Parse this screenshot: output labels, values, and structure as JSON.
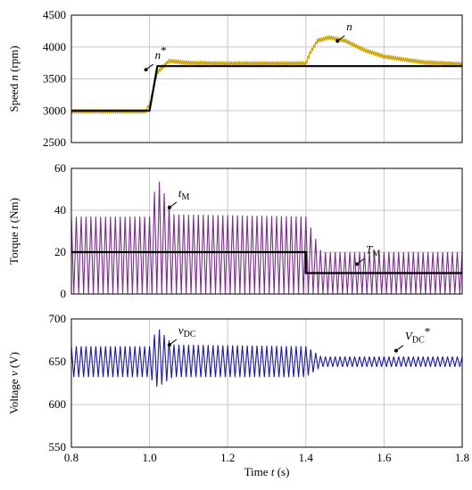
{
  "chart_data": [
    {
      "type": "line",
      "ylabel_main": "Speed ",
      "ylabel_var": "n",
      "ylabel_unit": " (rpm)",
      "xlim": [
        0.8,
        1.8
      ],
      "ylim": [
        2500,
        4500
      ],
      "yticks": [
        "2500",
        "3000",
        "3500",
        "4000",
        "4500"
      ],
      "grid": true,
      "colors": {
        "n": "#c8a000",
        "ref": "#000000"
      },
      "annotations": [
        {
          "text": "n",
          "sub": "",
          "sup": "",
          "x": 1.49,
          "y": 4150
        },
        {
          "text": "n",
          "sub": "",
          "sup": "*",
          "x": 1.0,
          "y": 3700
        }
      ],
      "series": [
        {
          "name": "n*",
          "x": [
            0.8,
            1.0,
            1.02,
            1.8
          ],
          "y": [
            3000,
            3000,
            3700,
            3700
          ]
        },
        {
          "name": "n",
          "x": [
            0.8,
            0.99,
            1.0,
            1.02,
            1.05,
            1.1,
            1.2,
            1.3,
            1.4,
            1.41,
            1.43,
            1.46,
            1.5,
            1.55,
            1.6,
            1.7,
            1.8
          ],
          "y": [
            2990,
            2990,
            3100,
            3600,
            3780,
            3750,
            3740,
            3740,
            3740,
            3900,
            4100,
            4150,
            4100,
            3950,
            3850,
            3760,
            3730
          ]
        }
      ]
    },
    {
      "type": "line",
      "ylabel_main": "Torque ",
      "ylabel_var": "t",
      "ylabel_unit": " (Nm)",
      "xlim": [
        0.8,
        1.8
      ],
      "ylim": [
        0,
        60
      ],
      "yticks": [
        "0",
        "20",
        "40",
        "60"
      ],
      "grid": true,
      "colors": {
        "t": "#7b2d8b",
        "ref": "#000000"
      },
      "annotations": [
        {
          "text": "t",
          "sub": "M",
          "sup": "",
          "x": 1.06,
          "y": 43
        },
        {
          "text": "T",
          "sub": "M",
          "sup": "",
          "x": 1.54,
          "y": 16
        }
      ],
      "series": [
        {
          "name": "TM",
          "x": [
            0.8,
            1.4,
            1.4,
            1.8
          ],
          "y": [
            20,
            20,
            10,
            10
          ]
        },
        {
          "name": "tM",
          "envelope_x": [
            0.8,
            1.0,
            1.02,
            1.06,
            1.4,
            1.44,
            1.8
          ],
          "upper": [
            37,
            37,
            56,
            38,
            37,
            20,
            20
          ],
          "lower": [
            0,
            0,
            0,
            0,
            0,
            0,
            0
          ]
        }
      ]
    },
    {
      "type": "line",
      "ylabel_main": "Voltage ",
      "ylabel_var": "v",
      "ylabel_unit": " (V)",
      "xlabel_main": "Time ",
      "xlabel_var": "t",
      "xlabel_unit": " (s)",
      "xlim": [
        0.8,
        1.8
      ],
      "ylim": [
        550,
        700
      ],
      "yticks": [
        "550",
        "600",
        "650",
        "700"
      ],
      "xticks": [
        "0.8",
        "1.0",
        "1.2",
        "1.4",
        "1.6",
        "1.8"
      ],
      "grid": true,
      "colors": {
        "v": "#1a1aa8"
      },
      "annotations": [
        {
          "text": "v",
          "sub": "DC",
          "sup": "",
          "x": 1.06,
          "y": 674
        },
        {
          "text": "V",
          "sub": "DC",
          "sup": "*",
          "x": 1.64,
          "y": 667
        }
      ],
      "series": [
        {
          "name": "vDC",
          "envelope_x": [
            0.8,
            1.0,
            1.02,
            1.06,
            1.4,
            1.44,
            1.8
          ],
          "upper": [
            668,
            668,
            690,
            670,
            668,
            656,
            656
          ],
          "lower": [
            632,
            632,
            620,
            632,
            632,
            644,
            644
          ]
        }
      ]
    }
  ]
}
